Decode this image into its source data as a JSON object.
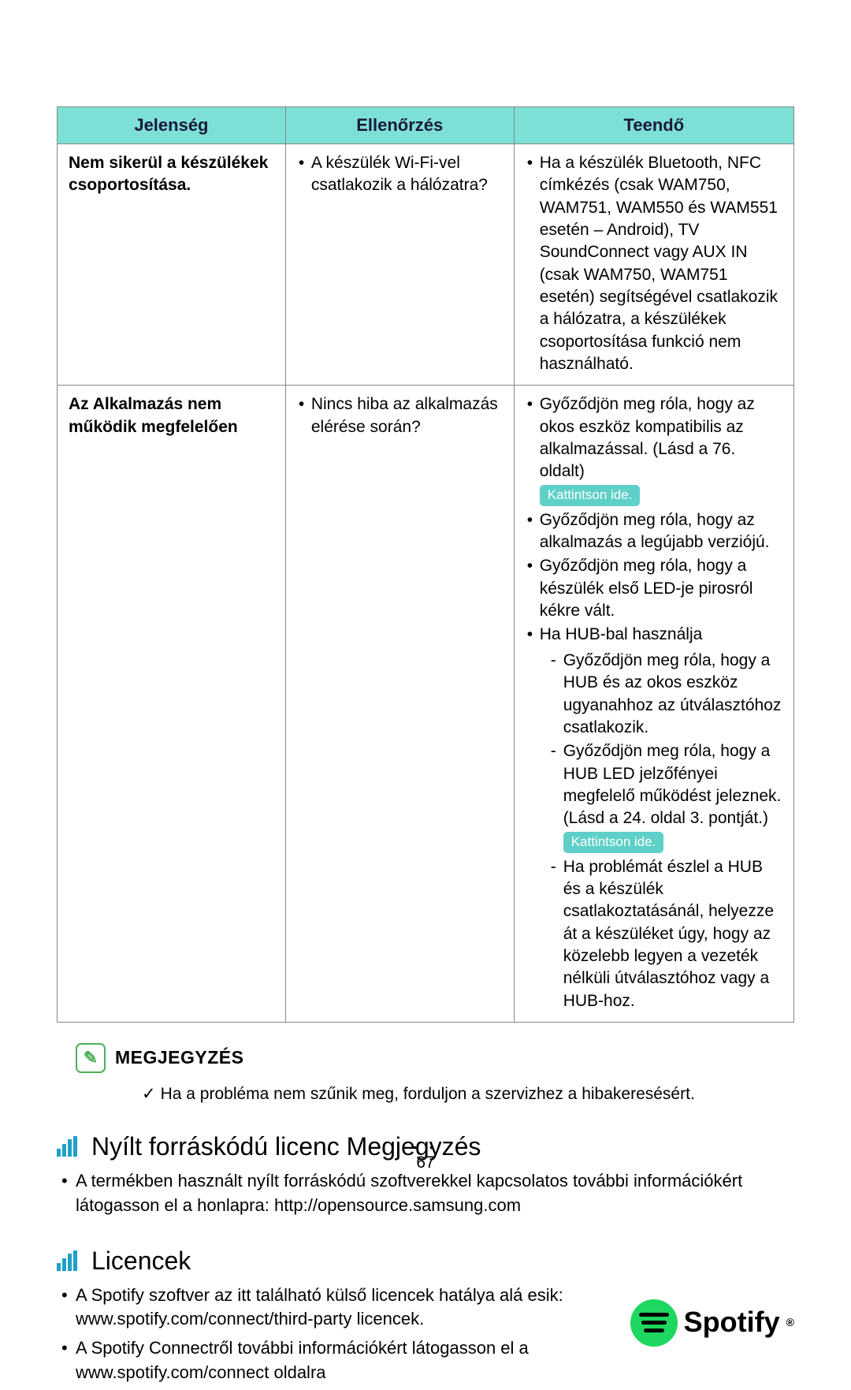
{
  "table": {
    "headers": [
      "Jelenség",
      "Ellenőrzés",
      "Teendő"
    ],
    "header_bg": "#7de0d6",
    "header_fg": "#1a1a3a",
    "border_color": "#888888",
    "badge_bg": "#5fd0c8",
    "badge_fg": "#ffffff",
    "rows": [
      {
        "col1": "Nem sikerül a készülékek csoportosítása.",
        "col2": [
          "A készülék Wi-Fi-vel csatlakozik a hálózatra?"
        ],
        "col3": [
          {
            "text": "Ha a készülék Bluetooth, NFC címkézés (csak WAM750, WAM751, WAM550 és WAM551 esetén – Android), TV SoundConnect vagy AUX IN (csak WAM750, WAM751 esetén) segítségével csatlakozik a hálózatra, a készülékek csoportosítása funkció nem használható."
          }
        ]
      },
      {
        "col1": "Az Alkalmazás nem működik megfelelően",
        "col2": [
          "Nincs hiba az alkalmazás elérése során?"
        ],
        "col3": [
          {
            "text": "Győződjön meg róla, hogy az okos eszköz kompatibilis az alkalmazással. (Lásd a 76. oldalt)",
            "badge": "Kattintson ide."
          },
          {
            "text": "Győződjön meg róla, hogy az alkalmazás a legújabb verziójú."
          },
          {
            "text": "Győződjön meg róla, hogy a készülék első LED-je pirosról kékre vált."
          },
          {
            "text": "Ha HUB-bal használja",
            "sub": [
              {
                "text": "Győződjön meg róla, hogy a HUB és az okos eszköz ugyanahhoz az útválasztóhoz csatlakozik."
              },
              {
                "text": "Győződjön meg róla, hogy a HUB LED jelzőfényei megfelelő működést jeleznek. (Lásd a 24. oldal 3. pontját.)",
                "badge": "Kattintson ide."
              },
              {
                "text": "Ha problémát észlel a HUB és a készülék csatlakoztatásánál, helyezze át a készüléket úgy, hogy az közelebb legyen a vezeték nélküli útválasztóhoz vagy a HUB-hoz."
              }
            ]
          }
        ]
      }
    ]
  },
  "note": {
    "icon_color": "#4bb05a",
    "title": "MEGJEGYZÉS",
    "check": "✓",
    "body": "Ha a probléma nem szűnik meg, forduljon a szervizhez a hibakeresésért."
  },
  "open_source": {
    "icon_color": "#1fa0c9",
    "title": "Nyílt forráskódú licenc Megjegyzés",
    "items": [
      "A termékben használt nyílt forráskódú szoftverekkel kapcsolatos további információkért látogasson el a honlapra: http://opensource.samsung.com"
    ]
  },
  "licences": {
    "icon_color": "#1fa0c9",
    "title": "Licencek",
    "items": [
      "A Spotify szoftver az itt található külső licencek hatálya alá esik: www.spotify.com/connect/third-party licencek.",
      "A Spotify Connectről további információkért látogasson el a www.spotify.com/connect oldalra"
    ],
    "spotify": {
      "name": "Spotify",
      "reg": "®",
      "circle_color": "#1ed760"
    }
  },
  "page": {
    "dots": "• •",
    "number": "67"
  }
}
